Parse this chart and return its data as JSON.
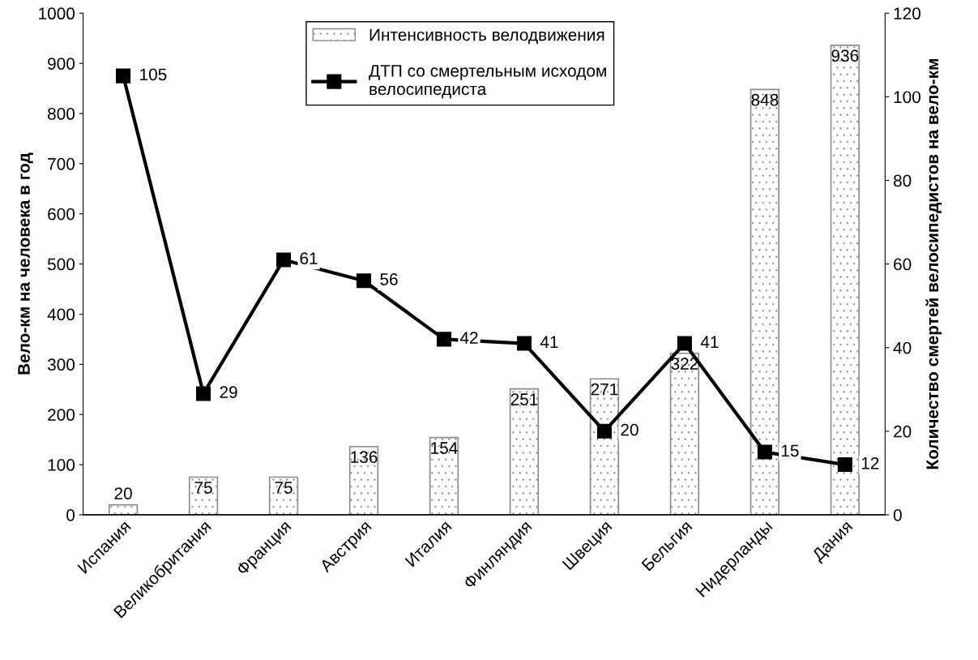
{
  "chart_data": {
    "type": "bar",
    "ylabel": "Вело-км на человека в год",
    "y2label": "Количество смертей велосипедистов на вело-км",
    "categories": [
      "Испания",
      "Великобритания",
      "Франция",
      "Австрия",
      "Италия",
      "Финляндия",
      "Швеция",
      "Бельгия",
      "Нидерланды",
      "Дания"
    ],
    "series": [
      {
        "name": "Интенсивность велодвижения",
        "color": "#8c8c8c",
        "values": [
          20,
          75,
          75,
          136,
          154,
          251,
          271,
          322,
          848,
          936
        ]
      },
      {
        "name": "ДТП со смертельным исходом\nвелосипедиста",
        "type": "line",
        "axis": "y2",
        "color": "#000000",
        "marker": "square",
        "line_style": "solid",
        "values": [
          105,
          29,
          61,
          56,
          42,
          41,
          20,
          41,
          15,
          12
        ]
      }
    ],
    "ylim": [
      0,
      1000
    ],
    "yticks": [
      0,
      100,
      200,
      300,
      400,
      500,
      600,
      700,
      800,
      900,
      1000
    ],
    "y2lim": [
      0,
      120
    ],
    "y2ticks": [
      0,
      20,
      40,
      60,
      80,
      100,
      120
    ],
    "data_labels": true,
    "grid": false,
    "legend": "top"
  }
}
